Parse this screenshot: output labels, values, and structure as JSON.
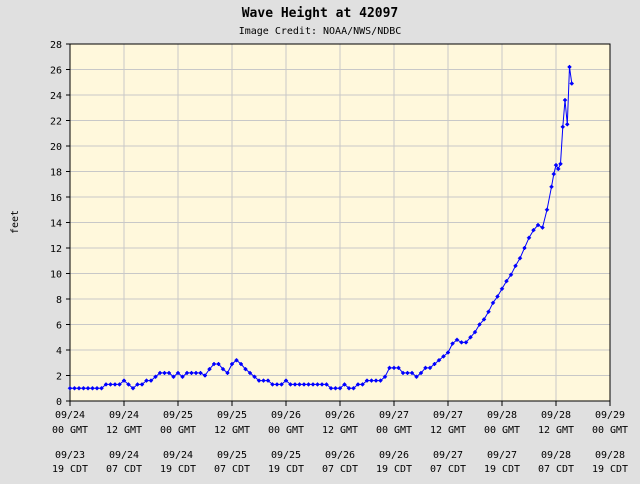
{
  "chart_data": {
    "type": "line",
    "title": "Wave Height at 42097",
    "subtitle": "Image Credit: NOAA/NWS/NDBC",
    "ylabel": "feet",
    "ylim": [
      0,
      28
    ],
    "yticks": [
      0,
      2,
      4,
      6,
      8,
      10,
      12,
      14,
      16,
      18,
      20,
      22,
      24,
      26,
      28
    ],
    "xlim": [
      0,
      120
    ],
    "x_unit": "hours since 09/24 00 GMT",
    "xticks": [
      {
        "x": 0,
        "gmt": [
          "09/24",
          "00 GMT"
        ],
        "cdt": [
          "09/23",
          "19 CDT"
        ]
      },
      {
        "x": 12,
        "gmt": [
          "09/24",
          "12 GMT"
        ],
        "cdt": [
          "09/24",
          "07 CDT"
        ]
      },
      {
        "x": 24,
        "gmt": [
          "09/25",
          "00 GMT"
        ],
        "cdt": [
          "09/24",
          "19 CDT"
        ]
      },
      {
        "x": 36,
        "gmt": [
          "09/25",
          "12 GMT"
        ],
        "cdt": [
          "09/25",
          "07 CDT"
        ]
      },
      {
        "x": 48,
        "gmt": [
          "09/26",
          "00 GMT"
        ],
        "cdt": [
          "09/25",
          "19 CDT"
        ]
      },
      {
        "x": 60,
        "gmt": [
          "09/26",
          "12 GMT"
        ],
        "cdt": [
          "09/26",
          "07 CDT"
        ]
      },
      {
        "x": 72,
        "gmt": [
          "09/27",
          "00 GMT"
        ],
        "cdt": [
          "09/26",
          "19 CDT"
        ]
      },
      {
        "x": 84,
        "gmt": [
          "09/27",
          "12 GMT"
        ],
        "cdt": [
          "09/27",
          "07 CDT"
        ]
      },
      {
        "x": 96,
        "gmt": [
          "09/28",
          "00 GMT"
        ],
        "cdt": [
          "09/27",
          "19 CDT"
        ]
      },
      {
        "x": 108,
        "gmt": [
          "09/28",
          "12 GMT"
        ],
        "cdt": [
          "09/28",
          "07 CDT"
        ]
      },
      {
        "x": 120,
        "gmt": [
          "09/29",
          "00 GMT"
        ],
        "cdt": [
          "09/28",
          "19 CDT"
        ]
      }
    ],
    "grid": true,
    "series": [
      {
        "color": "#0000ff",
        "x": [
          0,
          1,
          2,
          3,
          4,
          5,
          6,
          7,
          8,
          9,
          10,
          11,
          12,
          13,
          14,
          15,
          16,
          17,
          18,
          19,
          20,
          21,
          22,
          23,
          24,
          25,
          26,
          27,
          28,
          29,
          30,
          31,
          32,
          33,
          34,
          35,
          36,
          37,
          38,
          39,
          40,
          41,
          42,
          43,
          44,
          45,
          46,
          47,
          48,
          49,
          50,
          51,
          52,
          53,
          54,
          55,
          56,
          57,
          58,
          59,
          60,
          61,
          62,
          63,
          64,
          65,
          66,
          67,
          68,
          69,
          70,
          71,
          72,
          73,
          74,
          75,
          76,
          77,
          78,
          79,
          80,
          81,
          82,
          83,
          84,
          85,
          86,
          87,
          88,
          89,
          90,
          91,
          92,
          93,
          94,
          95,
          96,
          97,
          98,
          99,
          100,
          101,
          102,
          103,
          104,
          105,
          106,
          107
        ],
        "y": [
          1.0,
          1.0,
          1.0,
          1.0,
          1.0,
          1.0,
          1.0,
          1.0,
          1.3,
          1.3,
          1.3,
          1.3,
          1.6,
          1.3,
          1.0,
          1.3,
          1.3,
          1.6,
          1.6,
          1.9,
          2.2,
          2.2,
          2.2,
          1.9,
          2.2,
          1.9,
          2.2,
          2.2,
          2.2,
          2.2,
          2.0,
          2.5,
          2.9,
          2.9,
          2.5,
          2.2,
          2.9,
          3.2,
          2.9,
          2.5,
          2.2,
          1.9,
          1.6,
          1.6,
          1.6,
          1.3,
          1.3,
          1.3,
          1.6,
          1.3,
          1.3,
          1.3,
          1.3,
          1.3,
          1.3,
          1.3,
          1.3,
          1.3,
          1.0,
          1.0,
          1.0,
          1.3,
          1.0,
          1.0,
          1.3,
          1.3,
          1.6,
          1.6,
          1.6,
          1.6,
          1.9,
          2.6,
          2.6,
          2.6,
          2.2,
          2.2,
          2.2,
          1.9,
          2.2,
          2.6,
          2.6,
          2.9,
          3.2,
          3.5,
          3.8,
          4.5,
          4.8,
          4.6,
          4.6,
          5.0,
          5.4,
          6.0,
          6.4,
          7.0,
          7.7,
          8.2,
          8.8,
          9.4,
          9.9,
          10.6,
          11.2,
          12.0,
          12.8,
          13.4,
          13.8,
          13.6,
          15.0,
          16.8
        ]
      }
    ],
    "tail": {
      "x": [
        107.5,
        108,
        108.5,
        109,
        109.5,
        110,
        110.5,
        111,
        111.5,
        112,
        112.5
      ],
      "y": [
        17.8,
        18.5,
        18.2,
        18.6,
        21.5,
        23.6,
        21.7,
        26.2,
        24.9,
        null,
        null
      ]
    }
  }
}
